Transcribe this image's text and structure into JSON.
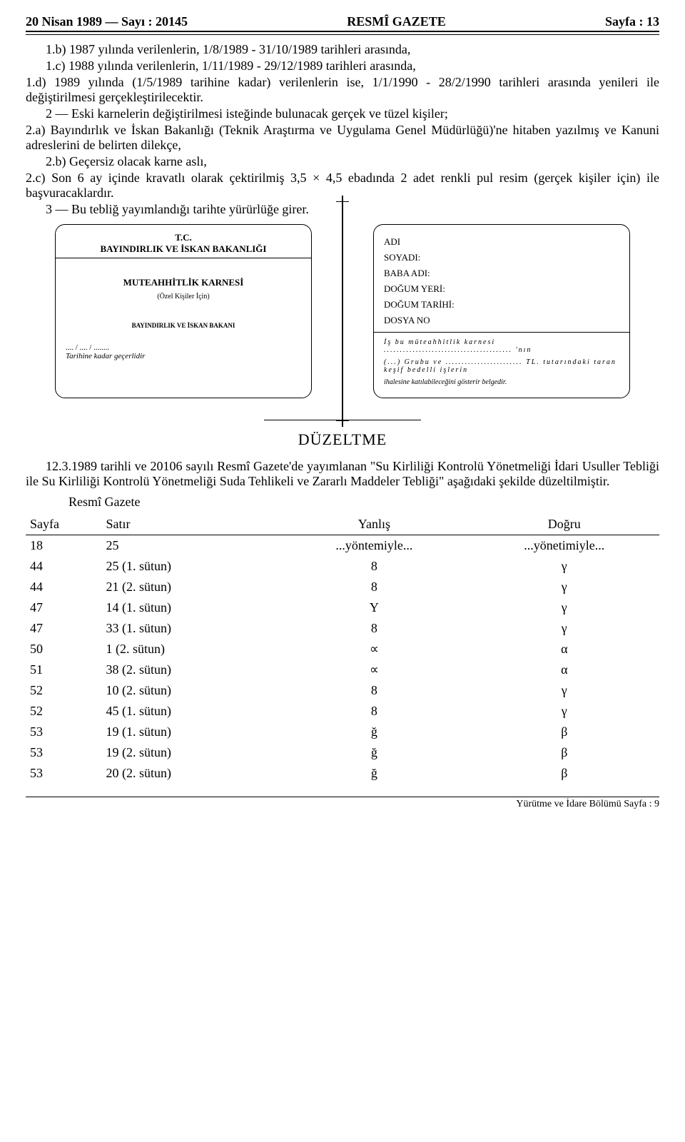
{
  "header": {
    "left": "20 Nisan 1989 — Sayı : 20145",
    "center": "RESMÎ GAZETE",
    "right": "Sayfa : 13"
  },
  "paragraphs": {
    "p1b": "1.b)  1987 yılında verilenlerin, 1/8/1989 - 31/10/1989 tarihleri arasında,",
    "p1c": "1.c)  1988 yılında verilenlerin, 1/11/1989 - 29/12/1989 tarihleri arasında,",
    "p1d": "1.d)  1989 yılında (1/5/1989 tarihine kadar) verilenlerin ise, 1/1/1990 - 28/2/1990 tarihleri arasında yenileri ile değiştirilmesi gerçekleştirilecektir.",
    "p2": "2 — Eski karnelerin değiştirilmesi isteğinde bulunacak gerçek ve tüzel kişiler;",
    "p2a": "2.a)  Bayındırlık ve İskan Bakanlığı (Teknik Araştırma ve Uygulama Genel Müdürlüğü)'ne hitaben yazılmış ve Kanuni adreslerini de belirten dilekçe,",
    "p2b": "2.b)  Geçersiz olacak karne aslı,",
    "p2c": "2.c)  Son 6 ay içinde kravatlı olarak çektirilmiş 3,5 × 4,5 ebadında 2 adet renkli pul resim (gerçek kişiler için) ile başvuracaklardır.",
    "p3": "3 — Bu tebliğ yayımlandığı tarihte yürürlüğe girer."
  },
  "form_left": {
    "l1": "T.C.",
    "l2": "BAYINDIRLIK VE İSKAN BAKANLIĞI",
    "l3": "MUTEAHHİTLİK KARNESİ",
    "l4": "(Özel Kişiler İçin)",
    "l5": "BAYINDIRLIK VE İSKAN BAKANI",
    "l6": ".... / .... / ........",
    "l7": "Tarihine kadar geçerlidir"
  },
  "form_right": {
    "r1": "ADI",
    "r2": "SOYADI:",
    "r3": "BABA ADI:",
    "r4": "DOĞUM YERİ:",
    "r5": "DOĞUM TARİHİ:",
    "r6": "DOSYA NO",
    "r7": "İş bu müteahhitlik karnesi ........................................ 'nın",
    "r8": "(...) Grubu ve ........................ TL. tutarındaki taran keşif bedelli işlerin",
    "r9": "ihalesine katılabileceğini gösterir belgedir."
  },
  "duzeltme": {
    "title": "DÜZELTME",
    "intro": "12.3.1989 tarihli ve 20106 sayılı Resmî Gazete'de yayımlanan \"Su Kirliliği Kontrolü Yönetmeliği İdari Usuller Tebliği ile Su Kirliliği Kontrolü Yönetmeliği Suda Tehlikeli ve Zararlı Maddeler Tebliği\" aşağıdaki şekilde düzeltilmiştir.",
    "rg": "Resmî Gazete",
    "headers": {
      "c1": "Sayfa",
      "c2": "Satır",
      "c3": "Yanlış",
      "c4": "Doğru"
    },
    "rows": [
      {
        "c1": "18",
        "c2": "25",
        "c3": "...yöntemiyle...",
        "c4": "...yönetimiyle..."
      },
      {
        "c1": "44",
        "c2": "25 (1. sütun)",
        "c3": "8",
        "c4": "γ"
      },
      {
        "c1": "44",
        "c2": "21 (2. sütun)",
        "c3": "8",
        "c4": "γ"
      },
      {
        "c1": "47",
        "c2": "14 (1. sütun)",
        "c3": "Y",
        "c4": "γ"
      },
      {
        "c1": "47",
        "c2": "33 (1. sütun)",
        "c3": "8",
        "c4": "γ"
      },
      {
        "c1": "50",
        "c2": "1 (2. sütun)",
        "c3": "∝",
        "c4": "α"
      },
      {
        "c1": "51",
        "c2": "38 (2. sütun)",
        "c3": "∝",
        "c4": "α"
      },
      {
        "c1": "52",
        "c2": "10 (2. sütun)",
        "c3": "8",
        "c4": "γ"
      },
      {
        "c1": "52",
        "c2": "45 (1. sütun)",
        "c3": "8",
        "c4": "γ"
      },
      {
        "c1": "53",
        "c2": "19 (1. sütun)",
        "c3": "ğ",
        "c4": "β"
      },
      {
        "c1": "53",
        "c2": "19 (2. sütun)",
        "c3": "ğ",
        "c4": "β"
      },
      {
        "c1": "53",
        "c2": "20 (2. sütun)",
        "c3": "ğ",
        "c4": "β"
      }
    ]
  },
  "footer": "Yürütme ve İdare Bölümü Sayfa : 9"
}
